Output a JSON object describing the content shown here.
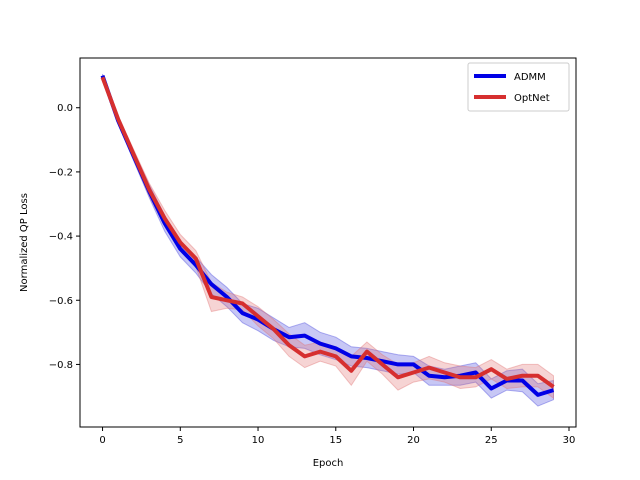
{
  "chart_data": {
    "type": "line",
    "title": "",
    "xlabel": "Epoch",
    "ylabel": "Normalized QP Loss",
    "xlim": [
      -1.45,
      30.45
    ],
    "ylim": [
      -0.995,
      0.155
    ],
    "xticks": [
      0,
      5,
      10,
      15,
      20,
      25,
      30
    ],
    "xtick_labels": [
      "0",
      "5",
      "10",
      "15",
      "20",
      "25",
      "30"
    ],
    "yticks": [
      0.0,
      -0.2,
      -0.4,
      -0.6,
      -0.8
    ],
    "ytick_labels": [
      "0.0",
      "−0.2",
      "−0.4",
      "−0.6",
      "−0.8"
    ],
    "grid": false,
    "legend_position": "upper right",
    "x": [
      0,
      1,
      2,
      3,
      4,
      5,
      6,
      7,
      8,
      9,
      10,
      11,
      12,
      13,
      14,
      15,
      16,
      17,
      18,
      19,
      20,
      21,
      22,
      23,
      24,
      25,
      26,
      27,
      28,
      29
    ],
    "series": [
      {
        "name": "ADMM",
        "color": "#0000e6",
        "band_color": "#4444dd",
        "values": [
          0.1,
          -0.04,
          -0.15,
          -0.26,
          -0.36,
          -0.44,
          -0.49,
          -0.55,
          -0.59,
          -0.64,
          -0.66,
          -0.69,
          -0.715,
          -0.71,
          -0.735,
          -0.75,
          -0.775,
          -0.78,
          -0.79,
          -0.8,
          -0.8,
          -0.835,
          -0.84,
          -0.835,
          -0.825,
          -0.875,
          -0.85,
          -0.85,
          -0.895,
          -0.88
        ],
        "upper": [
          0.105,
          -0.03,
          -0.135,
          -0.24,
          -0.335,
          -0.415,
          -0.465,
          -0.52,
          -0.56,
          -0.61,
          -0.625,
          -0.655,
          -0.685,
          -0.67,
          -0.7,
          -0.715,
          -0.745,
          -0.75,
          -0.76,
          -0.77,
          -0.775,
          -0.805,
          -0.815,
          -0.805,
          -0.795,
          -0.845,
          -0.82,
          -0.815,
          -0.86,
          -0.85
        ],
        "lower": [
          0.095,
          -0.05,
          -0.165,
          -0.28,
          -0.385,
          -0.465,
          -0.515,
          -0.58,
          -0.62,
          -0.67,
          -0.695,
          -0.725,
          -0.745,
          -0.75,
          -0.77,
          -0.785,
          -0.805,
          -0.81,
          -0.82,
          -0.83,
          -0.825,
          -0.865,
          -0.865,
          -0.865,
          -0.855,
          -0.905,
          -0.88,
          -0.885,
          -0.93,
          -0.91
        ]
      },
      {
        "name": "OptNet",
        "color": "#d62f2f",
        "band_color": "#e07070",
        "values": [
          0.095,
          -0.035,
          -0.145,
          -0.255,
          -0.345,
          -0.42,
          -0.47,
          -0.59,
          -0.6,
          -0.61,
          -0.65,
          -0.69,
          -0.74,
          -0.775,
          -0.76,
          -0.775,
          -0.82,
          -0.76,
          -0.8,
          -0.84,
          -0.825,
          -0.81,
          -0.825,
          -0.84,
          -0.84,
          -0.815,
          -0.845,
          -0.835,
          -0.835,
          -0.87
        ],
        "upper": [
          0.1,
          -0.025,
          -0.13,
          -0.235,
          -0.32,
          -0.395,
          -0.445,
          -0.545,
          -0.575,
          -0.59,
          -0.62,
          -0.66,
          -0.705,
          -0.74,
          -0.73,
          -0.745,
          -0.775,
          -0.73,
          -0.77,
          -0.8,
          -0.795,
          -0.775,
          -0.795,
          -0.805,
          -0.81,
          -0.785,
          -0.815,
          -0.8,
          -0.8,
          -0.835
        ],
        "lower": [
          0.09,
          -0.045,
          -0.16,
          -0.275,
          -0.37,
          -0.445,
          -0.495,
          -0.635,
          -0.625,
          -0.63,
          -0.68,
          -0.72,
          -0.775,
          -0.81,
          -0.79,
          -0.805,
          -0.865,
          -0.79,
          -0.83,
          -0.88,
          -0.855,
          -0.845,
          -0.855,
          -0.875,
          -0.87,
          -0.845,
          -0.875,
          -0.87,
          -0.87,
          -0.905
        ]
      }
    ]
  }
}
